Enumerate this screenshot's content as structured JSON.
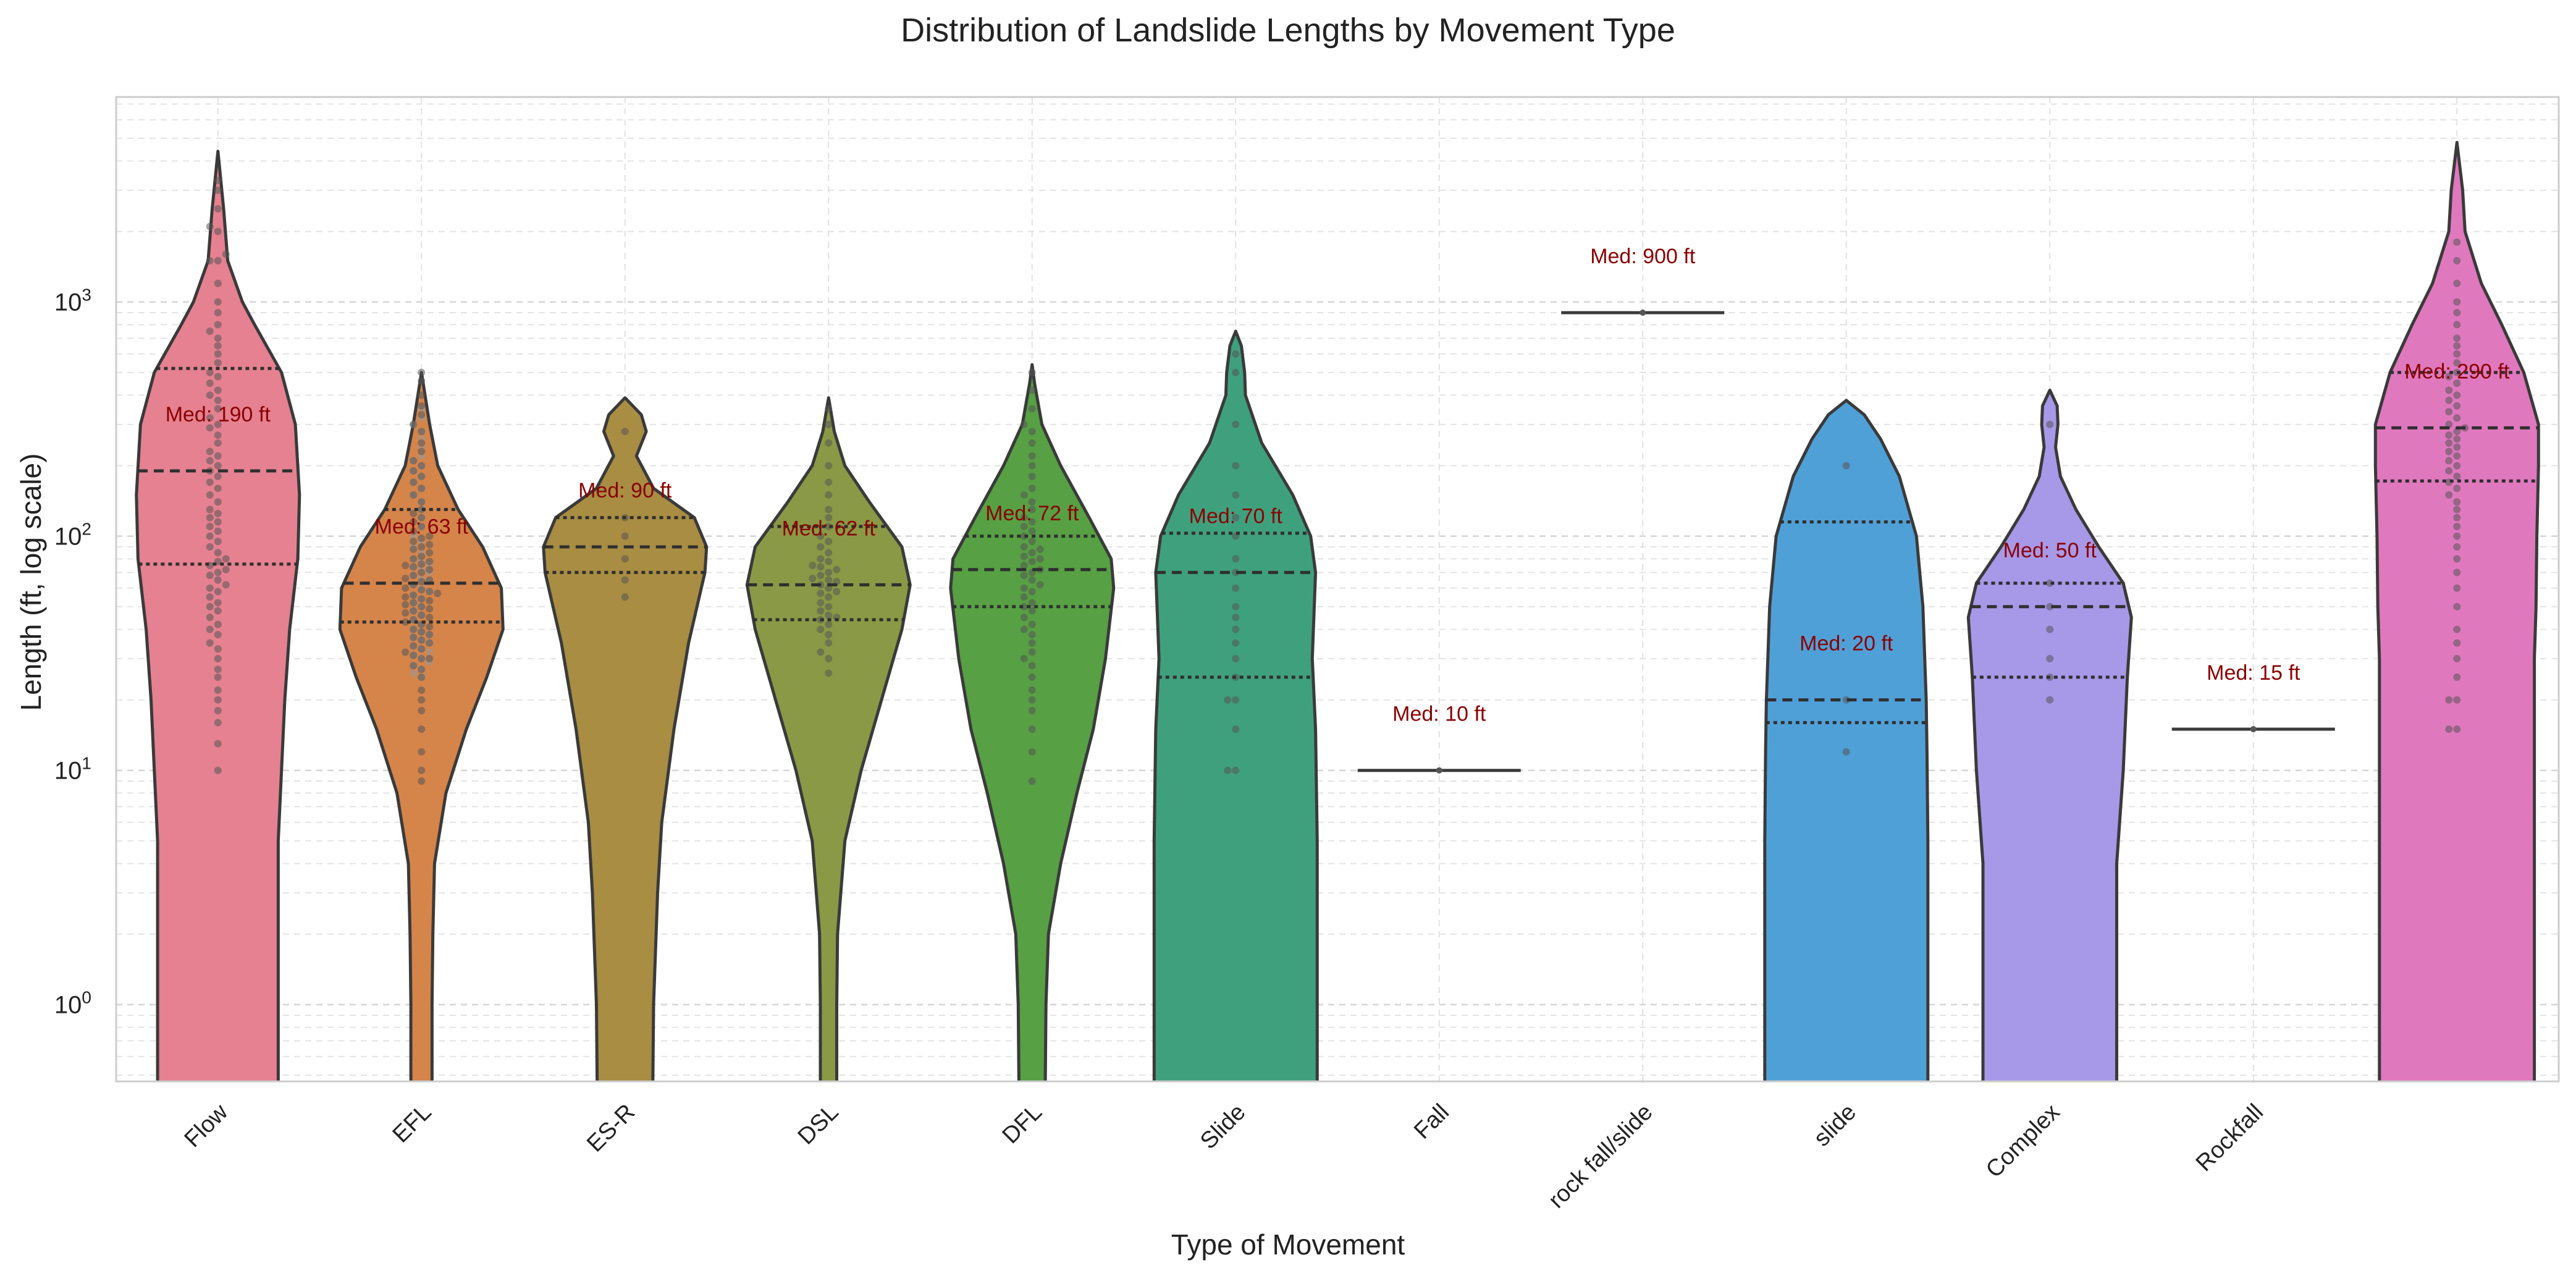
{
  "chart_data": {
    "type": "violin",
    "title": "Distribution of Landslide Lengths by Movement Type",
    "xlabel": "Type of Movement",
    "ylabel": "Length (ft, log scale)",
    "yscale": "log",
    "ylim": [
      0.47,
      7500
    ],
    "y_ticks": [
      {
        "value": 1,
        "label": "10^0"
      },
      {
        "value": 10,
        "label": "10^1"
      },
      {
        "value": 100,
        "label": "10^2"
      },
      {
        "value": 1000,
        "label": "10^3"
      }
    ],
    "grid": true,
    "categories": [
      "Flow",
      "EFL",
      "ES-R",
      "DSL",
      "DFL",
      "Slide",
      "Fall",
      "rock fall/slide",
      "slide",
      "Complex",
      "Rockfall",
      ""
    ],
    "series": [
      {
        "category": "Flow",
        "color": "#e58190",
        "median": 190,
        "q1": 76,
        "q3": 520,
        "min": 0.4,
        "max": 4400,
        "median_label": "Med: 190 ft",
        "profile": [
          [
            0.4,
            0.74
          ],
          [
            1,
            0.74
          ],
          [
            5,
            0.74
          ],
          [
            10,
            0.78
          ],
          [
            20,
            0.82
          ],
          [
            40,
            0.88
          ],
          [
            80,
            0.98
          ],
          [
            150,
            1.0
          ],
          [
            300,
            0.95
          ],
          [
            500,
            0.78
          ],
          [
            800,
            0.45
          ],
          [
            1000,
            0.3
          ],
          [
            1500,
            0.12
          ],
          [
            2500,
            0.07
          ],
          [
            4400,
            0.0
          ]
        ],
        "points": [
          10,
          13,
          16,
          18,
          20,
          22,
          25,
          27,
          30,
          33,
          35,
          38,
          40,
          42,
          45,
          48,
          50,
          52,
          55,
          58,
          60,
          62,
          65,
          68,
          70,
          72,
          75,
          78,
          80,
          85,
          90,
          95,
          100,
          105,
          110,
          115,
          120,
          125,
          130,
          140,
          150,
          160,
          170,
          180,
          190,
          200,
          210,
          220,
          230,
          250,
          270,
          290,
          300,
          320,
          350,
          380,
          400,
          420,
          450,
          480,
          500,
          550,
          600,
          650,
          700,
          750,
          800,
          900,
          1000,
          1200,
          1500,
          1500,
          1600,
          2000,
          2100,
          2500,
          3000,
          3300
        ]
      },
      {
        "category": "EFL",
        "color": "#d5844a",
        "median": 63,
        "q1": 43,
        "q3": 130,
        "min": 0.4,
        "max": 500,
        "median_label": "Med: 63 ft",
        "profile": [
          [
            0.4,
            0.13
          ],
          [
            1,
            0.13
          ],
          [
            2,
            0.14
          ],
          [
            4,
            0.16
          ],
          [
            8,
            0.3
          ],
          [
            15,
            0.55
          ],
          [
            25,
            0.8
          ],
          [
            40,
            1.0
          ],
          [
            60,
            0.98
          ],
          [
            90,
            0.75
          ],
          [
            130,
            0.45
          ],
          [
            200,
            0.2
          ],
          [
            300,
            0.1
          ],
          [
            500,
            0.0
          ]
        ],
        "points": [
          9,
          10,
          12,
          15,
          18,
          20,
          22,
          25,
          27,
          28,
          30,
          30,
          31,
          32,
          33,
          34,
          35,
          36,
          37,
          38,
          39,
          40,
          41,
          42,
          43,
          44,
          45,
          46,
          47,
          48,
          49,
          50,
          51,
          52,
          53,
          54,
          55,
          56,
          57,
          58,
          59,
          60,
          62,
          64,
          65,
          66,
          68,
          70,
          72,
          74,
          75,
          76,
          78,
          80,
          82,
          85,
          88,
          90,
          92,
          95,
          98,
          100,
          105,
          110,
          115,
          120,
          125,
          130,
          140,
          150,
          160,
          170,
          180,
          190,
          200,
          210,
          230,
          250,
          280,
          300,
          330,
          360,
          400,
          460,
          500
        ],
        "outer_points": [
          25,
          26,
          27,
          28,
          29,
          30,
          31,
          32,
          33,
          34,
          35,
          36,
          37,
          38,
          39,
          40,
          42,
          44,
          46,
          48,
          50,
          52,
          54,
          56,
          58,
          60,
          62,
          64,
          66,
          68,
          70,
          72,
          74,
          76,
          78,
          80,
          85,
          90,
          95,
          100,
          110,
          120,
          130,
          140,
          150,
          160,
          170,
          180,
          190,
          200,
          210,
          220,
          240,
          260,
          280,
          300,
          320,
          350
        ]
      },
      {
        "category": "ES-R",
        "color": "#a88d42",
        "median": 90,
        "q1": 70,
        "q3": 120,
        "min": 0.4,
        "max": 390,
        "median_label": "Med: 90 ft",
        "profile": [
          [
            0.4,
            0.34
          ],
          [
            1,
            0.35
          ],
          [
            3,
            0.4
          ],
          [
            6,
            0.45
          ],
          [
            15,
            0.6
          ],
          [
            35,
            0.78
          ],
          [
            70,
            0.98
          ],
          [
            90,
            1.0
          ],
          [
            120,
            0.85
          ],
          [
            160,
            0.35
          ],
          [
            220,
            0.14
          ],
          [
            280,
            0.26
          ],
          [
            330,
            0.2
          ],
          [
            390,
            0.0
          ]
        ],
        "points": [
          55,
          65,
          80,
          100,
          120,
          280
        ]
      },
      {
        "category": "DSL",
        "color": "#8a9945",
        "median": 62,
        "q1": 44,
        "q3": 110,
        "min": 0.4,
        "max": 390,
        "median_label": "Med: 62 ft",
        "profile": [
          [
            0.4,
            0.1
          ],
          [
            1,
            0.1
          ],
          [
            2,
            0.11
          ],
          [
            5,
            0.2
          ],
          [
            10,
            0.4
          ],
          [
            20,
            0.65
          ],
          [
            40,
            0.9
          ],
          [
            62,
            1.0
          ],
          [
            90,
            0.9
          ],
          [
            140,
            0.5
          ],
          [
            200,
            0.2
          ],
          [
            280,
            0.07
          ],
          [
            390,
            0.0
          ]
        ],
        "points": [
          26,
          30,
          32,
          35,
          38,
          40,
          42,
          44,
          45,
          46,
          48,
          50,
          52,
          55,
          57,
          58,
          60,
          62,
          64,
          65,
          66,
          68,
          70,
          72,
          74,
          75,
          78,
          80,
          85,
          90,
          95,
          100,
          110,
          120,
          130,
          150,
          170,
          200,
          250,
          300,
          350
        ]
      },
      {
        "category": "DFL",
        "color": "#57a043",
        "median": 72,
        "q1": 50,
        "q3": 100,
        "min": 0.4,
        "max": 540,
        "median_label": "Med: 72 ft",
        "profile": [
          [
            0.4,
            0.16
          ],
          [
            1,
            0.17
          ],
          [
            2,
            0.2
          ],
          [
            4,
            0.35
          ],
          [
            8,
            0.55
          ],
          [
            15,
            0.75
          ],
          [
            30,
            0.9
          ],
          [
            60,
            1.0
          ],
          [
            80,
            0.97
          ],
          [
            120,
            0.7
          ],
          [
            200,
            0.35
          ],
          [
            300,
            0.12
          ],
          [
            450,
            0.03
          ],
          [
            540,
            0.0
          ]
        ],
        "points": [
          9,
          12,
          15,
          18,
          20,
          22,
          25,
          28,
          30,
          32,
          35,
          38,
          40,
          42,
          45,
          48,
          50,
          52,
          55,
          58,
          60,
          62,
          65,
          68,
          70,
          72,
          75,
          78,
          80,
          82,
          85,
          88,
          90,
          95,
          100,
          105,
          110,
          115,
          120,
          130,
          140,
          150,
          160,
          180,
          200,
          220,
          250,
          280,
          300,
          350,
          420,
          500
        ]
      },
      {
        "category": "Slide",
        "color": "#3fa07e",
        "median": 70,
        "q1": 25,
        "q3": 103,
        "min": 0.4,
        "max": 750,
        "median_label": "Med: 70 ft",
        "profile": [
          [
            0.4,
            1.0
          ],
          [
            5,
            1.0
          ],
          [
            15,
            0.98
          ],
          [
            30,
            0.94
          ],
          [
            70,
            0.98
          ],
          [
            100,
            0.92
          ],
          [
            150,
            0.7
          ],
          [
            250,
            0.32
          ],
          [
            400,
            0.12
          ],
          [
            500,
            0.11
          ],
          [
            650,
            0.07
          ],
          [
            750,
            0.0
          ]
        ],
        "points": [
          10,
          10,
          15,
          20,
          20,
          25,
          30,
          35,
          40,
          45,
          50,
          60,
          70,
          80,
          100,
          120,
          150,
          200,
          300,
          500,
          600
        ]
      },
      {
        "category": "Fall",
        "color": "#444444",
        "median": 10,
        "single_value": true,
        "median_label": "Med: 10 ft",
        "points": [
          10
        ]
      },
      {
        "category": "rock fall/slide",
        "color": "#444444",
        "median": 900,
        "single_value": true,
        "median_label": "Med: 900 ft",
        "points": [
          900
        ]
      },
      {
        "category": "slide",
        "color": "#50a0d8",
        "median": 20,
        "q1": 16,
        "q3": 115,
        "min": 0.4,
        "max": 380,
        "median_label": "Med: 20 ft",
        "profile": [
          [
            0.4,
            1.0
          ],
          [
            5,
            1.0
          ],
          [
            12,
            0.99
          ],
          [
            20,
            0.98
          ],
          [
            50,
            0.94
          ],
          [
            100,
            0.86
          ],
          [
            180,
            0.65
          ],
          [
            260,
            0.42
          ],
          [
            330,
            0.22
          ],
          [
            380,
            0.0
          ]
        ],
        "points": [
          12,
          20,
          200
        ]
      },
      {
        "category": "Complex",
        "color": "#a898e8",
        "median": 50,
        "q1": 25,
        "q3": 63,
        "min": 0.4,
        "max": 420,
        "median_label": "Med: 50 ft",
        "profile": [
          [
            0.4,
            0.82
          ],
          [
            4,
            0.82
          ],
          [
            10,
            0.9
          ],
          [
            25,
            0.95
          ],
          [
            45,
            1.0
          ],
          [
            63,
            0.9
          ],
          [
            90,
            0.6
          ],
          [
            130,
            0.32
          ],
          [
            180,
            0.13
          ],
          [
            240,
            0.07
          ],
          [
            300,
            0.1
          ],
          [
            360,
            0.09
          ],
          [
            420,
            0.0
          ]
        ],
        "points": [
          20,
          25,
          30,
          40,
          50,
          63,
          300
        ]
      },
      {
        "category": "Rockfall",
        "color": "#444444",
        "median": 15,
        "single_value": true,
        "median_label": "Med: 15 ft",
        "points": [
          15
        ]
      },
      {
        "category": "",
        "color": "#e078be",
        "median": 290,
        "q1": 172,
        "q3": 500,
        "min": 0.4,
        "max": 4800,
        "median_label": "Med: 290 ft",
        "profile": [
          [
            0.4,
            0.95
          ],
          [
            10,
            0.95
          ],
          [
            30,
            0.95
          ],
          [
            50,
            0.97
          ],
          [
            100,
            0.98
          ],
          [
            200,
            1.0
          ],
          [
            300,
            1.0
          ],
          [
            500,
            0.82
          ],
          [
            800,
            0.55
          ],
          [
            1200,
            0.3
          ],
          [
            2000,
            0.1
          ],
          [
            3000,
            0.07
          ],
          [
            4800,
            0.0
          ]
        ],
        "points": [
          15,
          15,
          20,
          20,
          25,
          30,
          35,
          40,
          50,
          60,
          70,
          80,
          90,
          100,
          110,
          120,
          130,
          140,
          150,
          160,
          170,
          180,
          190,
          200,
          210,
          220,
          230,
          240,
          250,
          260,
          270,
          280,
          290,
          300,
          320,
          340,
          360,
          380,
          400,
          420,
          450,
          480,
          500,
          550,
          600,
          650,
          700,
          800,
          900,
          1000,
          1200,
          1500,
          1800
        ]
      }
    ]
  }
}
